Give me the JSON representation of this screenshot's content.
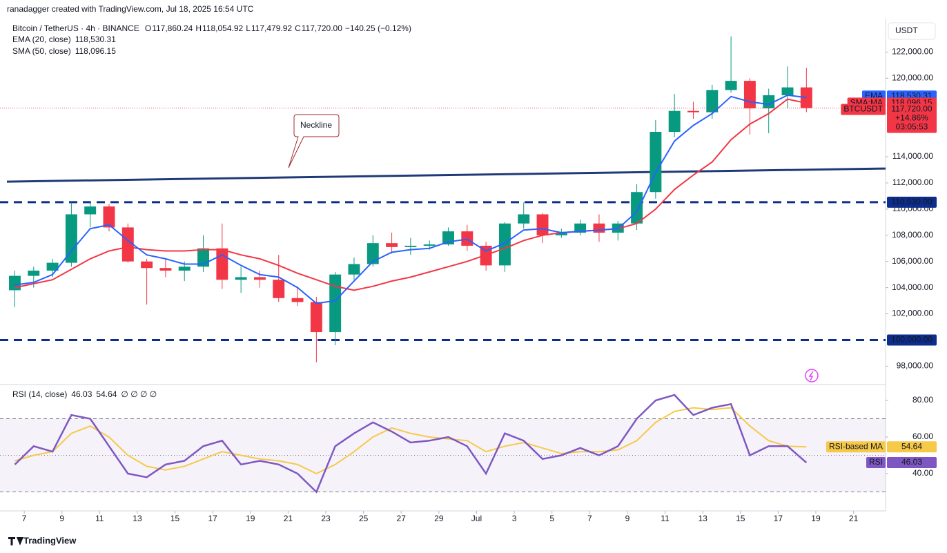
{
  "header": {
    "credit": "ranadagger created with TradingView.com, Jul 18, 2025 16:54 UTC",
    "symbol": "Bitcoin / TetherUS · 4h · BINANCE",
    "ohlc": [
      "O",
      "117,860.24",
      "H",
      "118,054.92",
      "L",
      "117,479.92",
      "C",
      "117,720.00",
      "−140.25 (−0.12%)"
    ]
  },
  "footer": {
    "brand": "TradingView"
  },
  "chart_data": [
    {
      "type": "candlestick",
      "axis_unit": "USDT",
      "x": [
        6.5,
        7.5,
        8.5,
        9.5,
        10.5,
        11.5,
        12.5,
        13.5,
        14.5,
        15.5,
        16.5,
        17.5,
        18.5,
        19.5,
        20.5,
        21.5,
        22.5,
        23.5,
        24.5,
        25.5,
        26.5,
        27.5,
        28.5,
        29.5,
        30.5,
        31.5,
        32.5,
        33.5,
        34.5,
        35.5,
        36.5,
        37.5,
        38.5,
        39.5,
        40.5,
        41.5,
        42.5,
        43.5,
        44.5,
        45.5,
        46.5,
        47.5,
        48.5
      ],
      "open": [
        103800,
        104900,
        105300,
        105900,
        109600,
        110200,
        108600,
        106000,
        105500,
        105300,
        105600,
        107000,
        104600,
        104800,
        104600,
        103200,
        102900,
        100600,
        105000,
        105800,
        107400,
        107100,
        107200,
        107300,
        108300,
        107200,
        105700,
        108900,
        109600,
        108000,
        108200,
        108900,
        108200,
        108900,
        111300,
        115900,
        117500,
        117400,
        119100,
        119800,
        117700,
        118700,
        119300
      ],
      "high": [
        105300,
        105600,
        106200,
        110500,
        110600,
        110400,
        108900,
        106200,
        106200,
        106000,
        108000,
        108900,
        105600,
        105300,
        106500,
        104100,
        103300,
        105200,
        106300,
        108000,
        108200,
        107800,
        107600,
        108600,
        108800,
        107500,
        109000,
        110500,
        109700,
        108500,
        109200,
        109600,
        109100,
        111900,
        116800,
        118800,
        118200,
        119500,
        123200,
        120000,
        119200,
        120900,
        120800
      ],
      "low": [
        102500,
        104000,
        104800,
        105600,
        108600,
        108300,
        105900,
        102700,
        104800,
        104500,
        105200,
        103900,
        103600,
        104000,
        102900,
        102600,
        98300,
        99600,
        104600,
        105600,
        106600,
        106500,
        106900,
        107200,
        106800,
        105300,
        105200,
        108500,
        107400,
        107800,
        108000,
        107500,
        107600,
        108400,
        110800,
        115500,
        116900,
        116900,
        118900,
        115700,
        115800,
        117700,
        117400
      ],
      "close": [
        104900,
        105300,
        105900,
        109600,
        110200,
        108600,
        106000,
        105500,
        105300,
        105600,
        107000,
        104600,
        104800,
        104600,
        103200,
        102900,
        100600,
        105000,
        105800,
        107400,
        107100,
        107200,
        107300,
        108300,
        107200,
        105700,
        108900,
        109600,
        108000,
        108200,
        108900,
        108200,
        108900,
        111300,
        115900,
        117500,
        117400,
        119100,
        119800,
        117700,
        118700,
        119300,
        117720
      ],
      "up_color": "#089981",
      "down_color": "#f23645",
      "series": [
        {
          "name": "EMA (20, close)",
          "last_label": "118,530.31",
          "color": "#2962ff",
          "values": [
            104200,
            104400,
            105000,
            106800,
            108500,
            108800,
            107600,
            106500,
            106200,
            105800,
            105800,
            106500,
            105700,
            105000,
            104800,
            104000,
            102800,
            103000,
            104500,
            106000,
            106700,
            106900,
            107000,
            107500,
            107700,
            106800,
            107400,
            108400,
            108500,
            108200,
            108300,
            108400,
            108500,
            109800,
            112800,
            115200,
            116400,
            117300,
            118600,
            118200,
            118000,
            118700,
            118530.31
          ]
        },
        {
          "name": "SMA (50, close)",
          "last_label": "118,096.15",
          "color": "#f23645",
          "values": [
            104000,
            104300,
            104600,
            105400,
            106200,
            106800,
            107100,
            106900,
            106800,
            106800,
            106900,
            106900,
            106500,
            106200,
            105700,
            105100,
            104600,
            104100,
            103800,
            104100,
            104500,
            104800,
            105200,
            105600,
            106000,
            106500,
            107000,
            107600,
            108000,
            108200,
            108300,
            108400,
            108500,
            108900,
            110000,
            111500,
            112600,
            113600,
            115300,
            116500,
            117300,
            118400,
            118096.15
          ]
        }
      ],
      "hlines": [
        {
          "value": 110530,
          "label": "110,530.00",
          "color": "#0d2d8c"
        },
        {
          "value": 100000,
          "label": "100,000.00",
          "color": "#0d2d8c"
        }
      ],
      "trendline": {
        "x": [
          6.08,
          52.7
        ],
        "values": [
          112100,
          113100
        ],
        "color": "#1e3a78",
        "annotation": "Neckline"
      },
      "tags": [
        {
          "name": "EMA",
          "value": 118530.31,
          "label": "118,530.31",
          "color": "#2962ff"
        },
        {
          "name": "SMA:MA",
          "value": 118096.15,
          "label": "118,096.15",
          "color": "#f23645"
        },
        {
          "name": "BTCUSDT",
          "value": 117720,
          "label": "117,720.00",
          "color": "#f23645",
          "extra": [
            "+14.86%",
            "03:05:53"
          ]
        }
      ],
      "xlim": [
        6.08,
        52.7
      ],
      "xticks": [
        7,
        9,
        11,
        13,
        15,
        17,
        19,
        21,
        23,
        25,
        27,
        29,
        {
          "value": 31,
          "label": "Jul"
        },
        {
          "value": 33,
          "label": "3"
        },
        {
          "value": 35,
          "label": "5"
        },
        {
          "value": 37,
          "label": "7"
        },
        {
          "value": 39,
          "label": "9"
        },
        {
          "value": 41,
          "label": "11"
        },
        {
          "value": 43,
          "label": "13"
        },
        {
          "value": 45,
          "label": "15"
        },
        {
          "value": 47,
          "label": "17"
        },
        {
          "value": 49,
          "label": "19"
        },
        {
          "value": 51,
          "label": "21"
        }
      ],
      "ylim": [
        96700,
        124500
      ],
      "yticks": [
        {
          "value": 98000,
          "label": "98,000.00"
        },
        {
          "value": 102000,
          "label": "102,000.00"
        },
        {
          "value": 104000,
          "label": "104,000.00"
        },
        {
          "value": 106000,
          "label": "106,000.00"
        },
        {
          "value": 108000,
          "label": "108,000.00"
        },
        {
          "value": 110000,
          "label": "110,000.00"
        },
        {
          "value": 112000,
          "label": "112,000.00"
        },
        {
          "value": 114000,
          "label": "114,000.00"
        },
        {
          "value": 120000,
          "label": "120,000.00"
        },
        {
          "value": 122000,
          "label": "122,000.00"
        }
      ]
    },
    {
      "type": "rsi",
      "title": "RSI (14, close)",
      "legend_values": [
        "46.03",
        "54.64"
      ],
      "legend_extra": "∅ ∅ ∅ ∅",
      "series": [
        {
          "name": "RSI",
          "color": "#7e57c2",
          "values": [
            45,
            55,
            52,
            72,
            70,
            55,
            40,
            38,
            45,
            47,
            55,
            58,
            45,
            47,
            45,
            40,
            30,
            55,
            62,
            68,
            63,
            57,
            58,
            60,
            55,
            40,
            62,
            58,
            48,
            50,
            54,
            50,
            55,
            70,
            80,
            83,
            72,
            76,
            78,
            50,
            55,
            55,
            46.03
          ]
        },
        {
          "name": "RSI-based MA",
          "color": "#f7c948",
          "values": [
            47,
            50,
            52,
            62,
            66,
            60,
            50,
            44,
            42,
            44,
            48,
            52,
            50,
            48,
            47,
            45,
            40,
            45,
            52,
            60,
            65,
            62,
            60,
            59,
            58,
            52,
            55,
            57,
            54,
            51,
            52,
            52,
            53,
            58,
            68,
            74,
            76,
            75,
            76,
            66,
            58,
            55,
            54.64
          ]
        }
      ],
      "tags": [
        {
          "name": "RSI-based MA",
          "value": 54.64,
          "label": "54.64",
          "color": "#f7c948"
        },
        {
          "name": "RSI",
          "value": 46.03,
          "label": "46.03",
          "color": "#7e57c2"
        }
      ],
      "bands": [
        30,
        50,
        70
      ],
      "ylim": [
        20.4,
        88.3
      ],
      "yticks": [
        {
          "value": 40,
          "label": "40.00"
        },
        {
          "value": 60,
          "label": "60.00"
        },
        {
          "value": 80,
          "label": "80.00"
        }
      ]
    }
  ]
}
